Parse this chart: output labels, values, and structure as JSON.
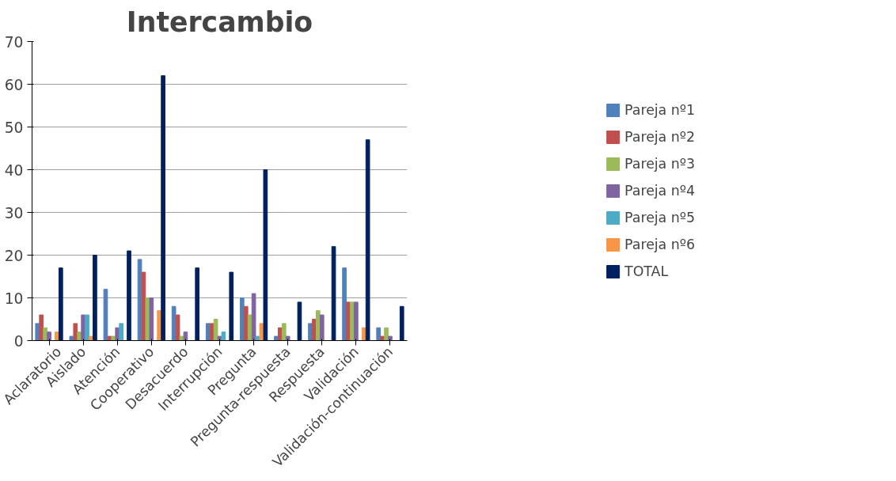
{
  "chart_data": {
    "type": "bar",
    "title": "Intercambio",
    "categories": [
      "Aclaratorio",
      "Aislado",
      "Atención",
      "Cooperativo",
      "Desacuerdo",
      "Interrupción",
      "Pregunta",
      "Pregunta-respuesta",
      "Respuesta",
      "Validación",
      "Validación-continuación"
    ],
    "series": [
      {
        "name": "Pareja nº1",
        "color": "#4f81bd",
        "values": [
          4,
          1,
          12,
          19,
          8,
          4,
          10,
          1,
          4,
          17,
          3
        ]
      },
      {
        "name": "Pareja nº2",
        "color": "#c0504d",
        "values": [
          6,
          4,
          1,
          16,
          6,
          4,
          8,
          3,
          5,
          9,
          1
        ]
      },
      {
        "name": "Pareja nº3",
        "color": "#9bbb59",
        "values": [
          3,
          2,
          1,
          10,
          1,
          5,
          6,
          4,
          7,
          9,
          3
        ]
      },
      {
        "name": "Pareja nº4",
        "color": "#8064a2",
        "values": [
          2,
          6,
          3,
          10,
          2,
          1,
          11,
          1,
          6,
          9,
          1
        ]
      },
      {
        "name": "Pareja nº5",
        "color": "#4bacc6",
        "values": [
          0,
          6,
          4,
          0,
          0,
          2,
          1,
          0,
          0,
          0,
          0
        ]
      },
      {
        "name": "Pareja nº6",
        "color": "#f79646",
        "values": [
          2,
          1,
          0,
          7,
          0,
          0,
          4,
          0,
          0,
          3,
          0
        ]
      },
      {
        "name": "TOTAL",
        "color": "#002060",
        "values": [
          17,
          20,
          21,
          62,
          17,
          16,
          40,
          9,
          22,
          47,
          8
        ]
      }
    ],
    "ylim": [
      0,
      70
    ],
    "yticks": [
      0,
      10,
      20,
      30,
      40,
      50,
      60,
      70
    ],
    "grid": "y",
    "legend": "right"
  }
}
